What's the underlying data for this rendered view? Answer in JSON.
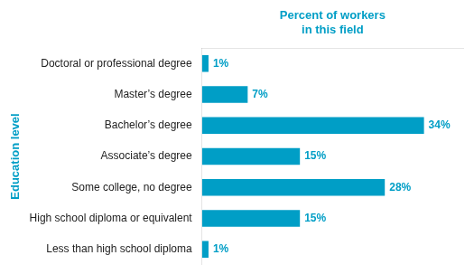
{
  "chart_data": {
    "type": "bar",
    "orientation": "horizontal",
    "ylabel": "Education level",
    "xlabel": "Percent of workers\nin this field",
    "categories": [
      "Doctoral or professional degree",
      "Master’s degree",
      "Bachelor’s degree",
      "Associate’s degree",
      "Some college, no degree",
      "High school diploma or equivalent",
      "Less than high school diploma"
    ],
    "values": [
      1,
      7,
      34,
      15,
      28,
      15,
      1
    ],
    "value_labels": [
      "1%",
      "7%",
      "34%",
      "15%",
      "28%",
      "15%",
      "1%"
    ],
    "data_labels": true,
    "color": "#009ec6",
    "xlim": [
      0,
      40
    ],
    "grid": false,
    "tick_labels": "y"
  }
}
